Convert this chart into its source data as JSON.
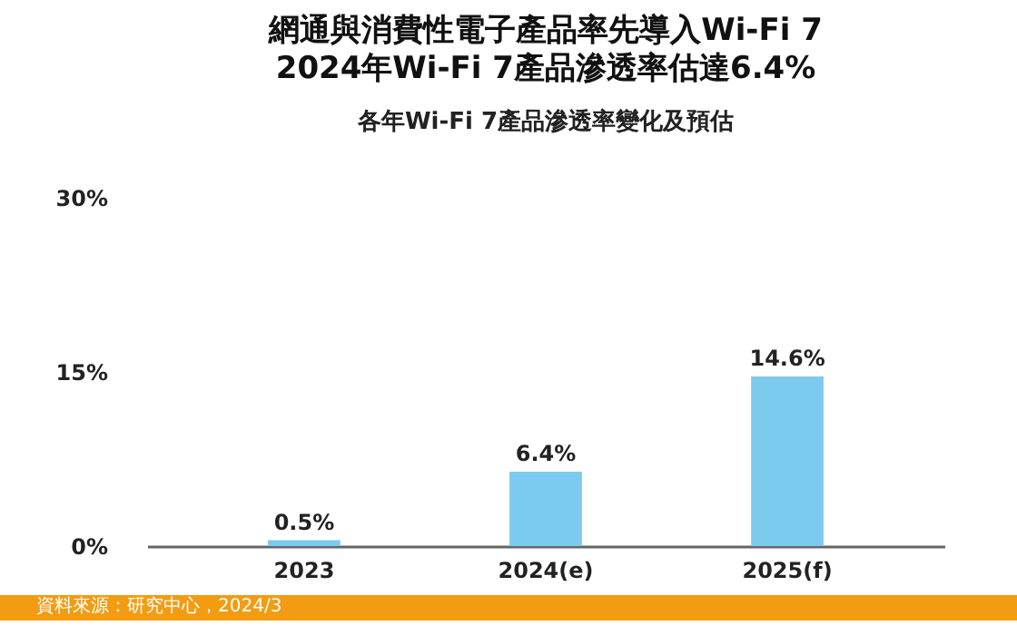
{
  "chart_data": {
    "type": "bar",
    "title": "網通與消費性電子產品率先導入Wi-Fi 7\n2024年Wi-Fi 7產品滲透率估達6.4%",
    "subtitle": "各年Wi-Fi 7產品滲透率變化及預估",
    "categories": [
      "2023",
      "2024(e)",
      "2025(f)"
    ],
    "values": [
      0.5,
      6.4,
      14.6
    ],
    "value_labels": [
      "0.5%",
      "6.4%",
      "14.6%"
    ],
    "color": "#7ccbee",
    "ylim": [
      0,
      30
    ],
    "yticks": [
      {
        "value": 0,
        "label": "0%"
      },
      {
        "value": 15,
        "label": "15%"
      },
      {
        "value": 30,
        "label": "30%"
      }
    ],
    "grid": false,
    "annotations": [
      "資料來源：研究中心，2024/3"
    ]
  }
}
